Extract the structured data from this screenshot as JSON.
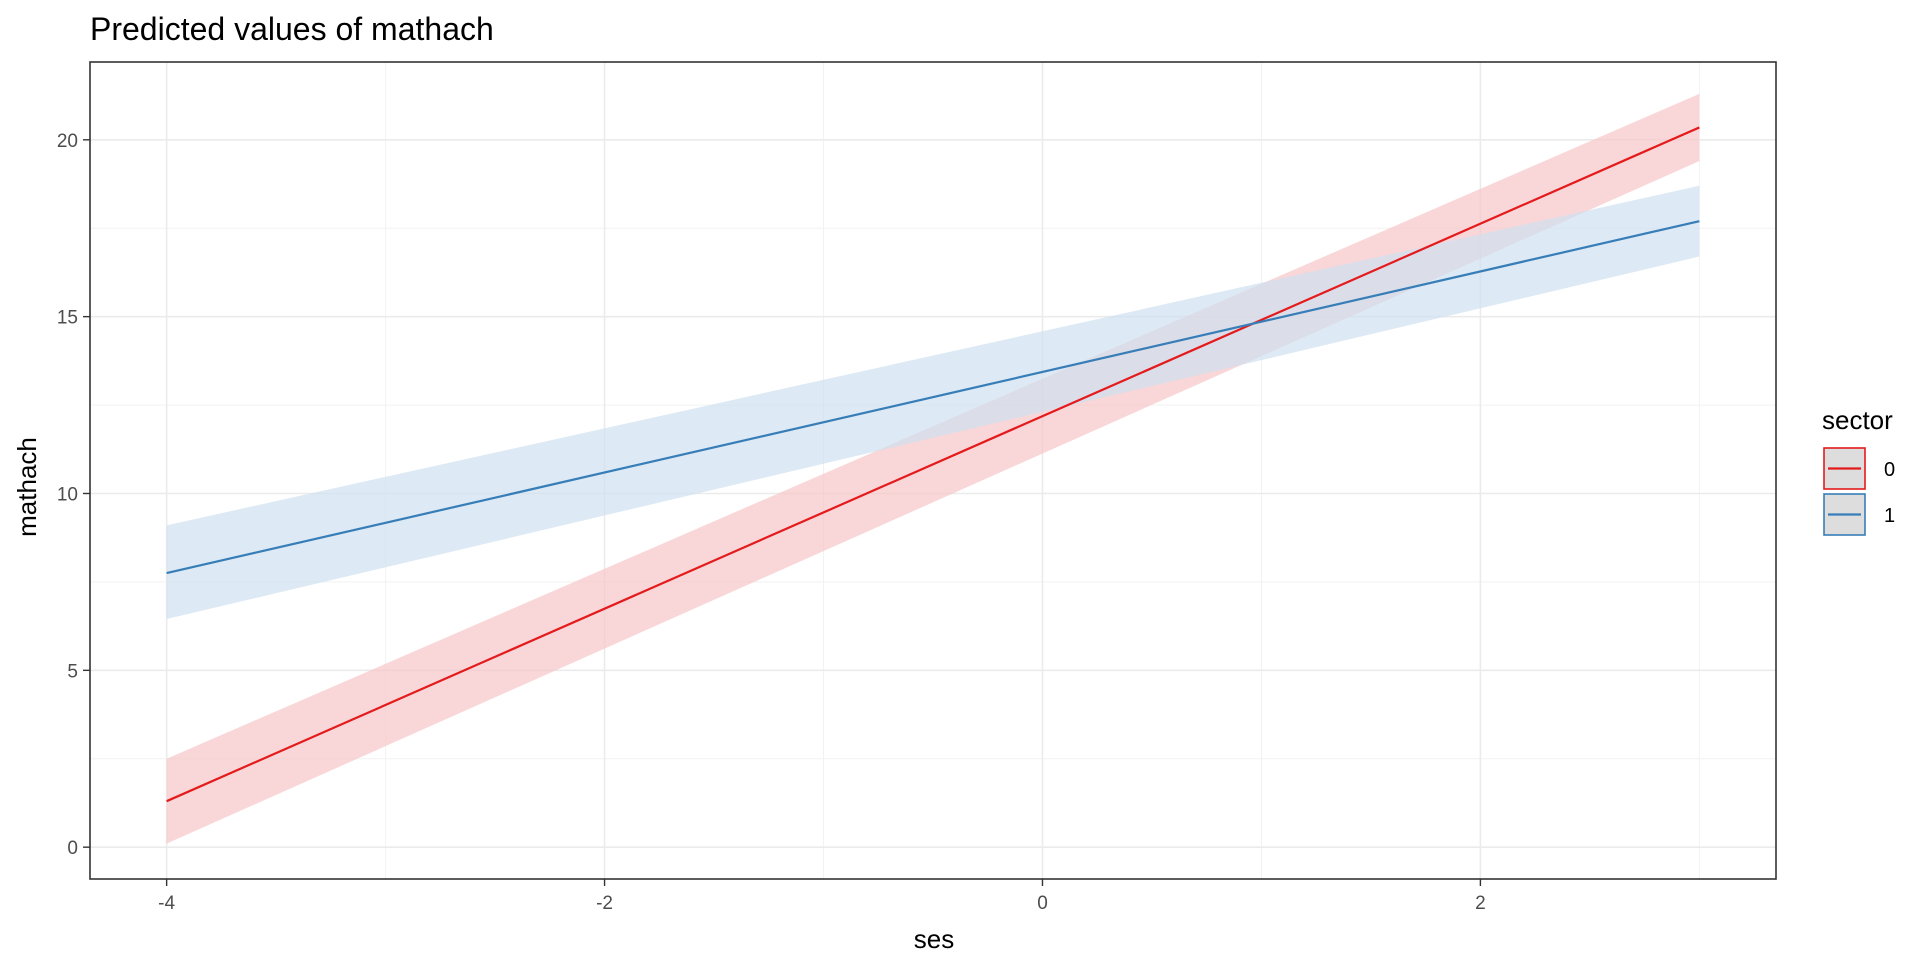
{
  "chart_data": {
    "type": "line",
    "title": "Predicted values of mathach",
    "xlabel": "ses",
    "ylabel": "mathach",
    "xlim": [
      -4.35,
      3.35
    ],
    "ylim": [
      -0.9,
      22.2
    ],
    "x_ticks": [
      -4,
      -2,
      0,
      2
    ],
    "x_tick_labels": [
      "-4",
      "-2",
      "0",
      "2"
    ],
    "x_minor_ticks": [
      -3,
      -1,
      1,
      3
    ],
    "y_ticks": [
      0,
      5,
      10,
      15,
      20
    ],
    "y_tick_labels": [
      "0",
      "5",
      "10",
      "15",
      "20"
    ],
    "y_minor_ticks": [
      2.5,
      7.5,
      12.5,
      17.5
    ],
    "grid": true,
    "legend": {
      "title": "sector",
      "position": "right"
    },
    "series": [
      {
        "name": "0",
        "color": "#e41a1c",
        "band_color": "#f7c6c8",
        "x": [
          -4,
          3
        ],
        "values": [
          1.3,
          20.35
        ],
        "ci_lower": [
          0.1,
          19.4
        ],
        "ci_upper": [
          2.5,
          21.3
        ]
      },
      {
        "name": "1",
        "color": "#377eb8",
        "band_color": "#cfe0f0",
        "x": [
          -4,
          3
        ],
        "values": [
          7.75,
          17.7
        ],
        "ci_lower": [
          6.45,
          16.7
        ],
        "ci_upper": [
          9.1,
          18.7
        ]
      }
    ]
  }
}
